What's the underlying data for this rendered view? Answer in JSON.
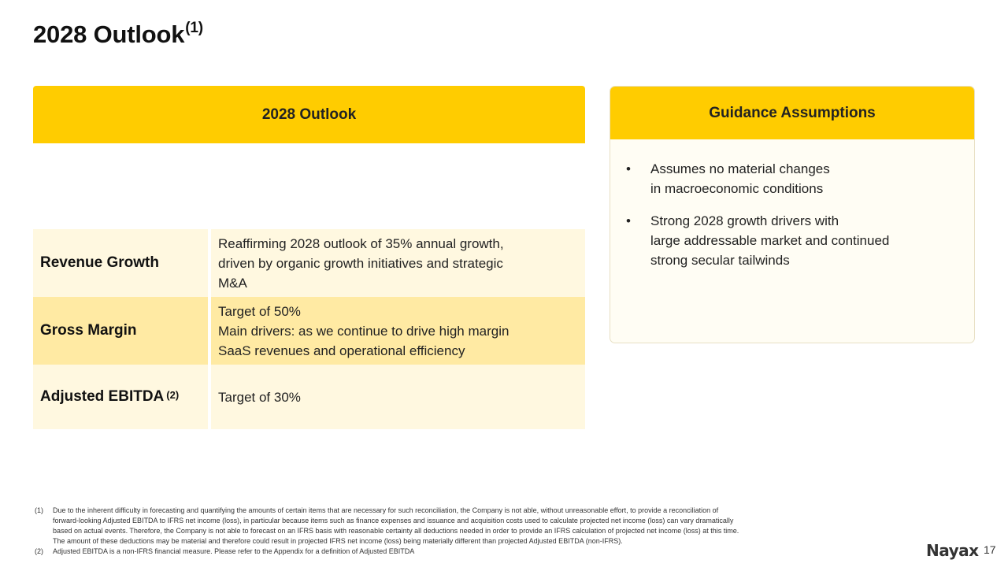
{
  "slide": {
    "title": "2028 Outlook",
    "title_sup": "(1)",
    "page_number": "17",
    "logo_text": "Nayax"
  },
  "outlook_table": {
    "header": "2028 Outlook",
    "rows": [
      {
        "label": "Revenue Growth",
        "label_sup": "",
        "lines": [
          "Reaffirming 2028 outlook of 35% annual growth,",
          "driven by organic growth initiatives and strategic",
          "M&A"
        ]
      },
      {
        "label": "Gross Margin",
        "label_sup": "",
        "lines": [
          "Target of 50%",
          "Main drivers: as we continue to drive high margin",
          "SaaS revenues and operational efficiency"
        ]
      },
      {
        "label": "Adjusted EBITDA",
        "label_sup": "(2)",
        "lines": [
          "Target of 30%"
        ]
      }
    ]
  },
  "guidance": {
    "header": "Guidance Assumptions",
    "bullet_char": "•",
    "items": [
      {
        "lines": [
          "Assumes no material changes",
          "in macroeconomic conditions"
        ]
      },
      {
        "lines": [
          "Strong 2028 growth drivers with",
          "large addressable market and continued",
          "strong secular tailwinds"
        ]
      }
    ]
  },
  "footnotes": [
    {
      "num": "(1)",
      "lines": [
        "Due to the inherent difficulty in forecasting and quantifying the amounts of certain items that are necessary for such reconciliation, the Company is not able, without unreasonable effort, to provide a reconciliation of",
        "forward-looking Adjusted EBITDA to IFRS net income (loss), in particular because items such as finance expenses and issuance and acquisition costs used to calculate projected net income (loss) can vary dramatically",
        "based on actual events. Therefore, the Company is not able to forecast on an IFRS basis with reasonable certainty all deductions needed in order to provide an IFRS calculation of projected net income (loss) at this time.",
        "The amount of these deductions may be material and therefore could result in projected IFRS net income (loss) being materially different than projected Adjusted EBITDA (non-IFRS)."
      ]
    },
    {
      "num": "(2)",
      "lines": [
        "Adjusted  EBITDA is a non-IFRS financial measure. Please refer to the Appendix for a definition of Adjusted EBITDA"
      ]
    }
  ],
  "colors": {
    "accent": "#ffcc00",
    "row_light": "#fff8e0",
    "row_dark": "#ffeaa3"
  }
}
